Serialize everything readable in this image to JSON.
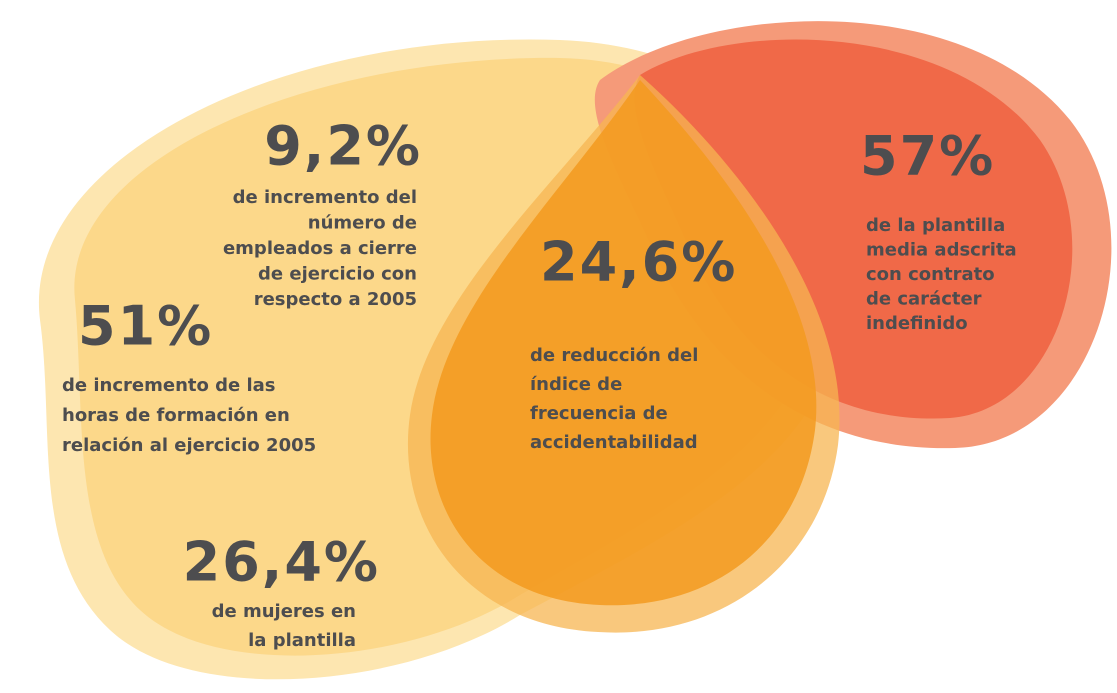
{
  "stats": [
    {
      "value": "9,2%",
      "lines": [
        "de incremento del",
        "número de",
        "empleados a cierre",
        "de ejercicio con",
        "respecto a 2005"
      ]
    },
    {
      "value": "51%",
      "lines": [
        "de incremento de las",
        "horas de formación en",
        "relación al ejercicio 2005"
      ]
    },
    {
      "value": "26,4%",
      "lines": [
        "de mujeres en",
        "la plantilla"
      ]
    },
    {
      "value": "24,6%",
      "lines": [
        "de reducción del",
        "índice de",
        "frecuencia de",
        "accidentabilidad"
      ]
    },
    {
      "value": "57%",
      "lines": [
        "de la plantilla",
        "media adscrita",
        "con contrato",
        "de carácter",
        "indefinido"
      ]
    }
  ]
}
